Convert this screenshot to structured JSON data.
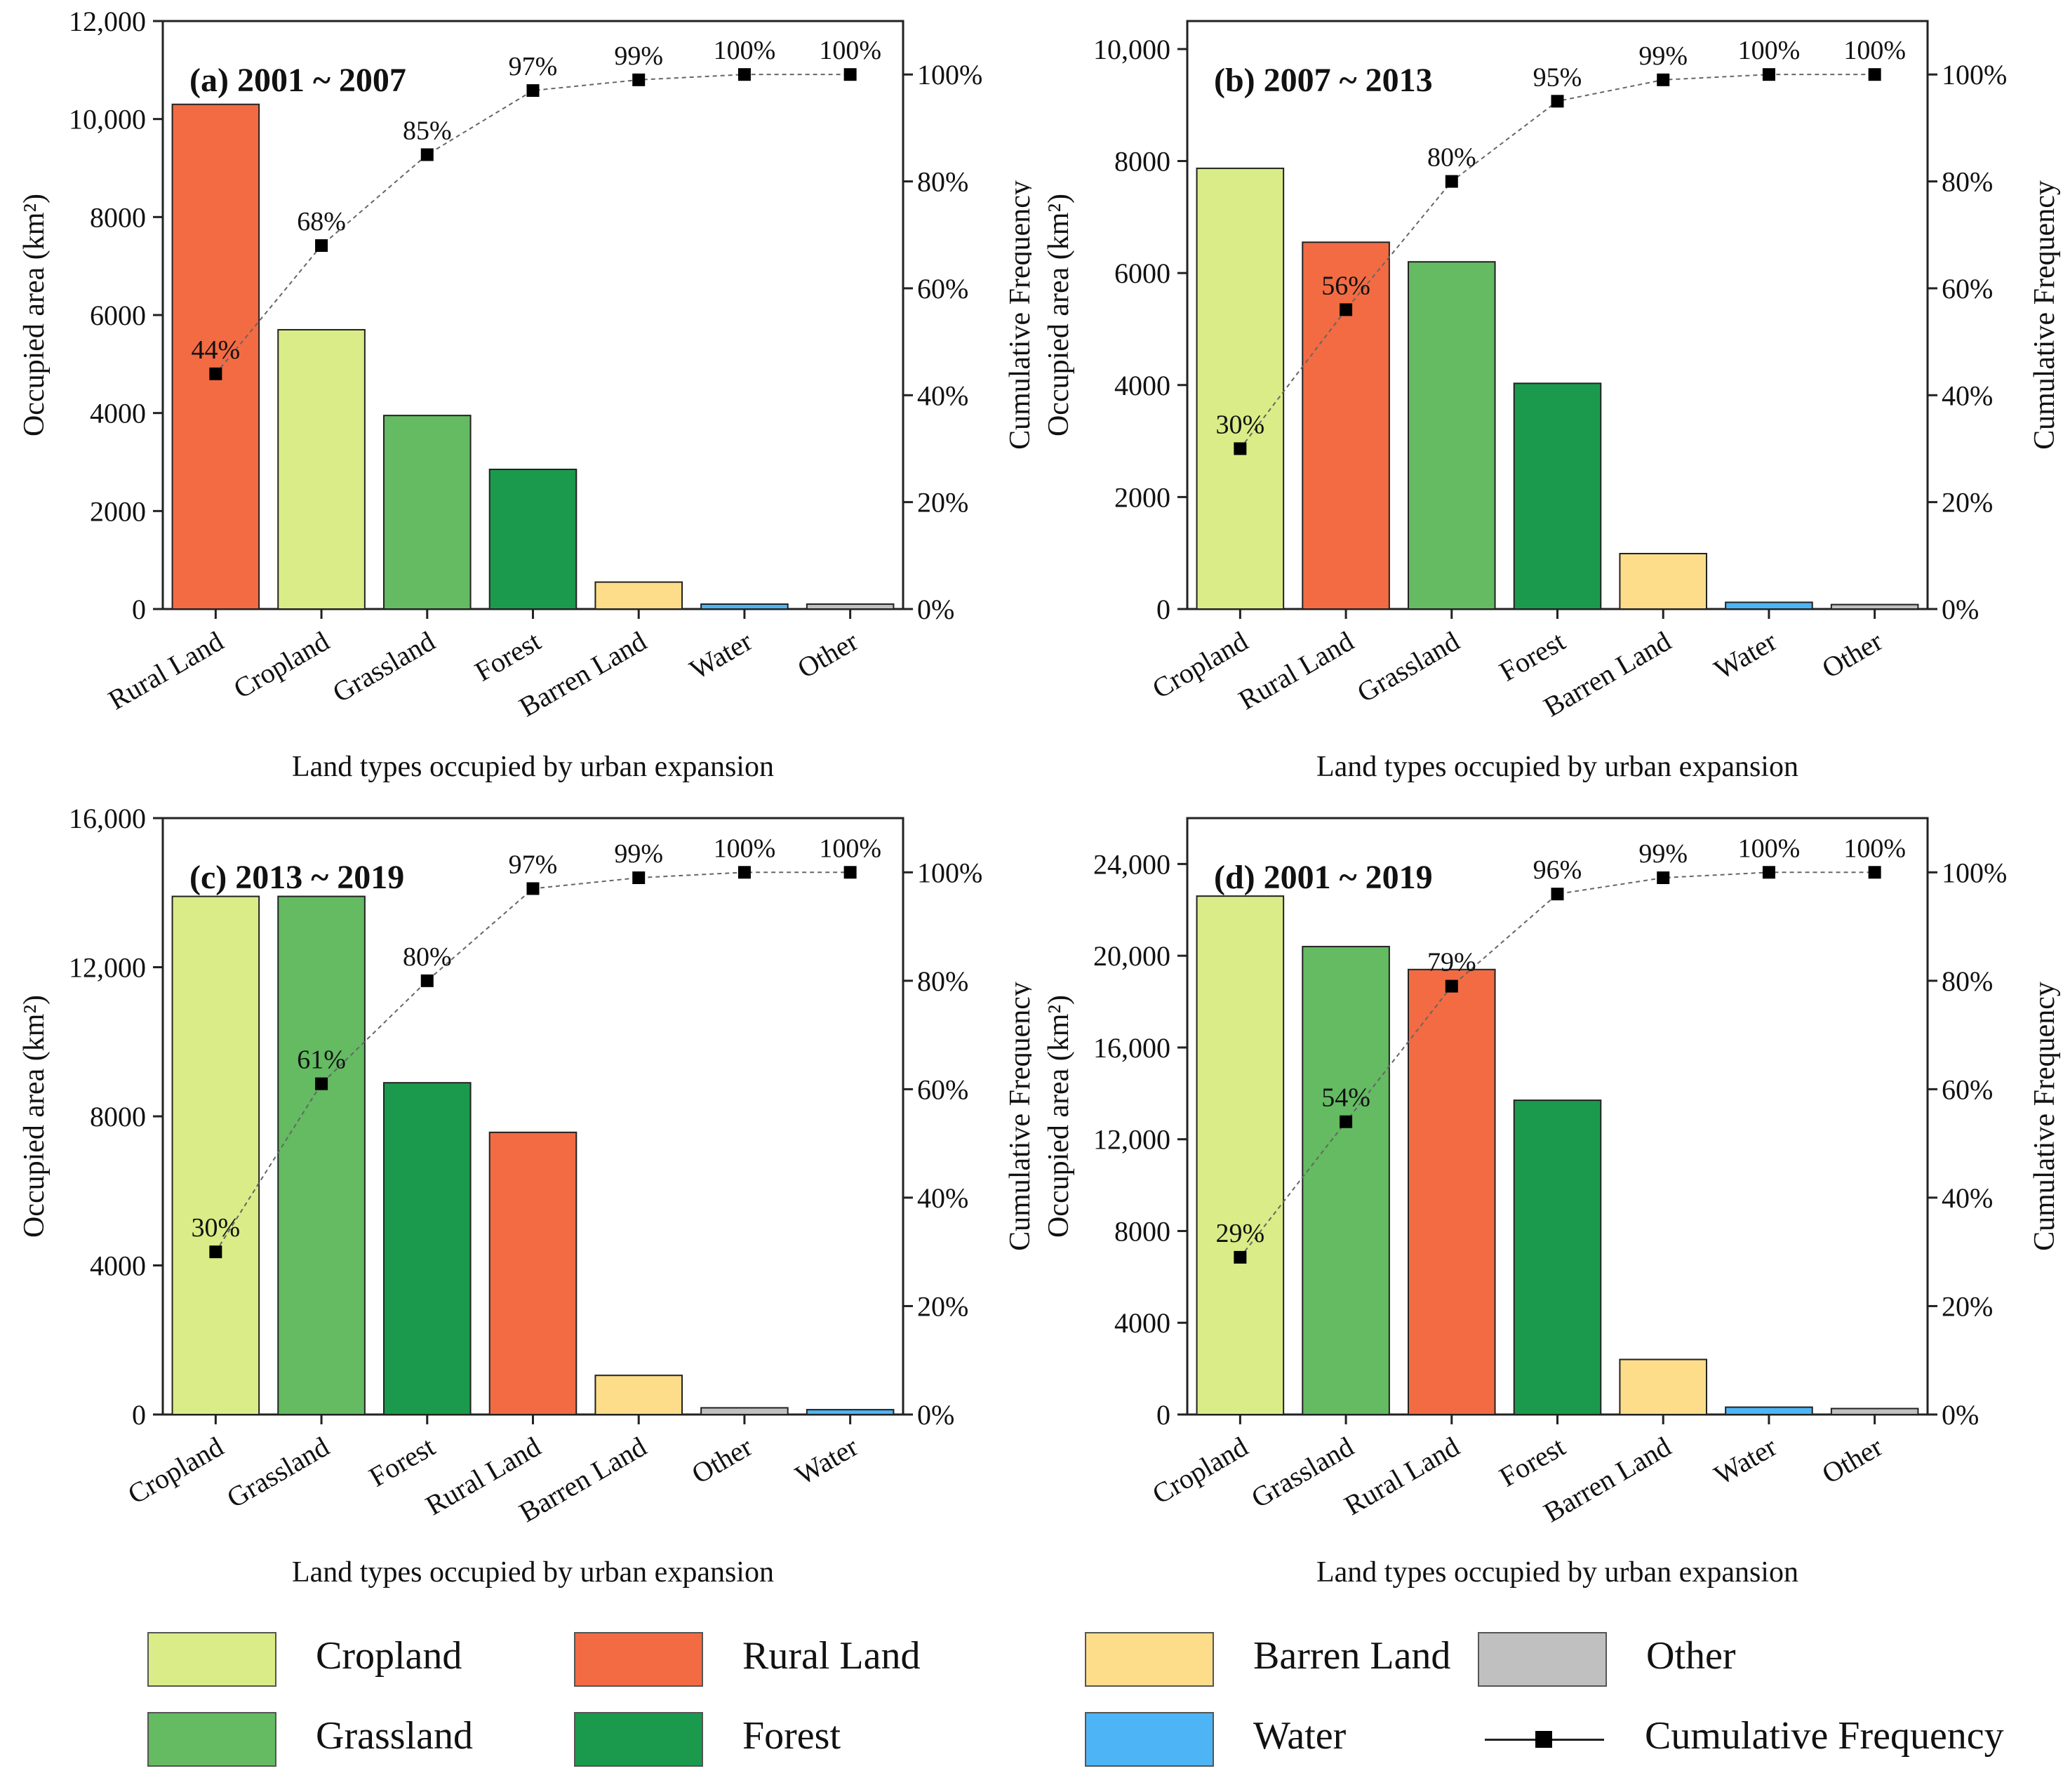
{
  "colors": {
    "Cropland": "#d9ec87",
    "Rural Land": "#f26b43",
    "Grassland": "#64bb62",
    "Forest": "#1b9a4d",
    "Barren Land": "#fddd89",
    "Water": "#4db5f5",
    "Other": "#c0c0c0"
  },
  "legend": {
    "items": [
      {
        "name": "Cropland",
        "label": "Cropland"
      },
      {
        "name": "Rural Land",
        "label": "Rural Land"
      },
      {
        "name": "Barren Land",
        "label": "Barren Land"
      },
      {
        "name": "Other",
        "label": "Other"
      },
      {
        "name": "Grassland",
        "label": "Grassland"
      },
      {
        "name": "Forest",
        "label": "Forest"
      },
      {
        "name": "Water",
        "label": "Water"
      }
    ],
    "cumulative_label": "Cumulative Frequency"
  },
  "chart_data": [
    {
      "type": "bar",
      "title": "(a) 2001 ~ 2007",
      "xlabel": "Land types occupied by urban expansion",
      "ylabel": "Occupied area (km²)",
      "y2label": "Cumulative Frequency",
      "categories": [
        "Rural Land",
        "Cropland",
        "Grassland",
        "Forest",
        "Barren Land",
        "Water",
        "Other"
      ],
      "values": [
        10300,
        5700,
        3950,
        2850,
        550,
        100,
        100
      ],
      "ylim": [
        0,
        12000
      ],
      "yticks": [
        0,
        2000,
        4000,
        6000,
        8000,
        10000,
        12000
      ],
      "ytick_labels": [
        "0",
        "2000",
        "4000",
        "6000",
        "8000",
        "10,000",
        "12,000"
      ],
      "cumulative": [
        44,
        68,
        85,
        97,
        99,
        100,
        100
      ],
      "cumulative_labels": [
        "44%",
        "68%",
        "85%",
        "97%",
        "99%",
        "100%",
        "100%"
      ],
      "y2ticks": [
        0,
        20,
        40,
        60,
        80,
        100
      ],
      "y2tick_labels": [
        "0%",
        "20%",
        "40%",
        "60%",
        "80%",
        "100%"
      ]
    },
    {
      "type": "bar",
      "title": "(b) 2007 ~ 2013",
      "xlabel": "Land types occupied by urban expansion",
      "ylabel": "Occupied area (km²)",
      "y2label": "Cumulative Frequency",
      "categories": [
        "Cropland",
        "Rural Land",
        "Grassland",
        "Forest",
        "Barren Land",
        "Water",
        "Other"
      ],
      "values": [
        7870,
        6550,
        6200,
        4030,
        990,
        120,
        80
      ],
      "ylim": [
        0,
        10500
      ],
      "yticks": [
        0,
        2000,
        4000,
        6000,
        8000,
        10000
      ],
      "ytick_labels": [
        "0",
        "2000",
        "4000",
        "6000",
        "8000",
        "10,000"
      ],
      "cumulative": [
        30,
        56,
        80,
        95,
        99,
        100,
        100
      ],
      "cumulative_labels": [
        "30%",
        "56%",
        "80%",
        "95%",
        "99%",
        "100%",
        "100%"
      ],
      "y2ticks": [
        0,
        20,
        40,
        60,
        80,
        100
      ],
      "y2tick_labels": [
        "0%",
        "20%",
        "40%",
        "60%",
        "80%",
        "100%"
      ]
    },
    {
      "type": "bar",
      "title": "(c) 2013 ~ 2019",
      "xlabel": "Land types occupied by urban expansion",
      "ylabel": "Occupied area (km²)",
      "y2label": "Cumulative Frequency",
      "categories": [
        "Cropland",
        "Grassland",
        "Forest",
        "Rural Land",
        "Barren Land",
        "Other",
        "Water"
      ],
      "values": [
        13900,
        13900,
        8900,
        7570,
        1050,
        180,
        130
      ],
      "ylim": [
        0,
        16000
      ],
      "yticks": [
        0,
        4000,
        8000,
        12000,
        16000
      ],
      "ytick_labels": [
        "0",
        "4000",
        "8000",
        "12,000",
        "16,000"
      ],
      "cumulative": [
        30,
        61,
        80,
        97,
        99,
        100,
        100
      ],
      "cumulative_labels": [
        "30%",
        "61%",
        "80%",
        "97%",
        "99%",
        "100%",
        "100%"
      ],
      "y2ticks": [
        0,
        20,
        40,
        60,
        80,
        100
      ],
      "y2tick_labels": [
        "0%",
        "20%",
        "40%",
        "60%",
        "80%",
        "100%"
      ]
    },
    {
      "type": "bar",
      "title": "(d) 2001 ~ 2019",
      "xlabel": "Land types occupied by urban expansion",
      "ylabel": "Occupied area (km²)",
      "y2label": "Cumulative Frequency",
      "categories": [
        "Cropland",
        "Grassland",
        "Rural Land",
        "Forest",
        "Barren Land",
        "Water",
        "Other"
      ],
      "values": [
        22600,
        20400,
        19400,
        13700,
        2400,
        320,
        260
      ],
      "ylim": [
        0,
        26000
      ],
      "yticks": [
        0,
        4000,
        8000,
        12000,
        16000,
        20000,
        24000
      ],
      "ytick_labels": [
        "0",
        "4000",
        "8000",
        "12,000",
        "16,000",
        "20,000",
        "24,000"
      ],
      "cumulative": [
        29,
        54,
        79,
        96,
        99,
        100,
        100
      ],
      "cumulative_labels": [
        "29%",
        "54%",
        "79%",
        "96%",
        "99%",
        "100%",
        "100%"
      ],
      "y2ticks": [
        0,
        20,
        40,
        60,
        80,
        100
      ],
      "y2tick_labels": [
        "0%",
        "20%",
        "40%",
        "60%",
        "80%",
        "100%"
      ]
    }
  ]
}
